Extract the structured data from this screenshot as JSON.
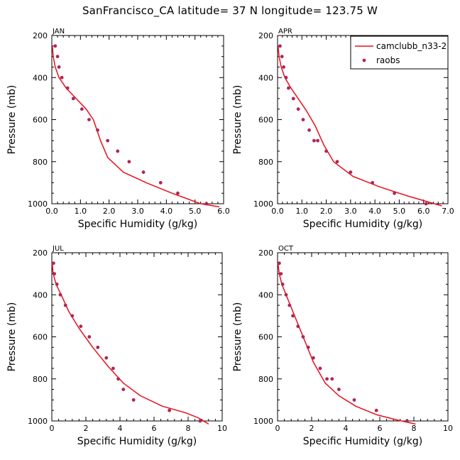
{
  "title": "SanFrancisco_CA  latitude= 37 N longitude= 123.75 W",
  "colors": {
    "model": "#e8101a",
    "obs": "#b0255a",
    "axis": "#000000"
  },
  "legend": {
    "model": "camclubb_n33-2",
    "obs": "raobs",
    "placement": "top-right of APR panel"
  },
  "chart_data": [
    {
      "type": "line",
      "panel": "JAN",
      "xlabel": "Specific Humidity (g/kg)",
      "ylabel": "Pressure (mb)",
      "xlim": [
        0,
        6.0
      ],
      "ylim": [
        1000,
        200
      ],
      "xticks": [
        "0.0",
        "1.0",
        "2.0",
        "3.0",
        "4.0",
        "5.0",
        "6.0"
      ],
      "yticks": [
        "200",
        "400",
        "600",
        "800",
        "1000"
      ],
      "series": [
        {
          "name": "camclubb_n33-2",
          "kind": "line",
          "x": [
            0.02,
            0.05,
            0.12,
            0.25,
            0.5,
            0.85,
            1.2,
            1.45,
            1.7,
            1.95,
            2.5,
            3.3,
            4.2,
            5.2,
            5.85
          ],
          "y": [
            250,
            300,
            350,
            400,
            450,
            500,
            550,
            600,
            700,
            780,
            850,
            900,
            950,
            1000,
            1015
          ]
        },
        {
          "name": "raobs",
          "kind": "scatter",
          "x": [
            0.12,
            0.2,
            0.25,
            0.35,
            0.55,
            0.75,
            1.05,
            1.3,
            1.6,
            1.95,
            2.3,
            2.7,
            3.2,
            3.8,
            4.4,
            5.4
          ],
          "y": [
            250,
            300,
            350,
            400,
            450,
            500,
            550,
            600,
            650,
            700,
            750,
            800,
            850,
            900,
            950,
            1000
          ]
        }
      ]
    },
    {
      "type": "line",
      "panel": "APR",
      "xlabel": "Specific Humidity (g/kg)",
      "ylabel": "Pressure (mb)",
      "xlim": [
        0,
        7.0
      ],
      "ylim": [
        1000,
        200
      ],
      "xticks": [
        "0.0",
        "1.0",
        "2.0",
        "3.0",
        "4.0",
        "5.0",
        "6.0",
        "7.0"
      ],
      "yticks": [
        "200",
        "400",
        "600",
        "800",
        "1000"
      ],
      "series": [
        {
          "name": "camclubb_n33-2",
          "kind": "line",
          "x": [
            0.02,
            0.06,
            0.15,
            0.3,
            0.55,
            0.85,
            1.2,
            1.55,
            1.9,
            2.3,
            3.1,
            4.2,
            5.4,
            6.75
          ],
          "y": [
            250,
            300,
            350,
            400,
            450,
            500,
            560,
            630,
            720,
            800,
            870,
            920,
            965,
            1010
          ]
        },
        {
          "name": "raobs",
          "kind": "scatter",
          "x": [
            0.1,
            0.18,
            0.25,
            0.35,
            0.45,
            0.65,
            0.85,
            1.05,
            1.3,
            1.5,
            1.65,
            2.0,
            2.45,
            3.0,
            3.9,
            4.8,
            6.1
          ],
          "y": [
            250,
            300,
            350,
            400,
            450,
            500,
            550,
            600,
            650,
            700,
            700,
            750,
            800,
            850,
            900,
            950,
            1000
          ]
        }
      ]
    },
    {
      "type": "line",
      "panel": "JUL",
      "xlabel": "Specific Humidity (g/kg)",
      "ylabel": "Pressure (mb)",
      "xlim": [
        0,
        10
      ],
      "ylim": [
        1000,
        200
      ],
      "xticks": [
        "0",
        "2",
        "4",
        "6",
        "8",
        "10"
      ],
      "yticks": [
        "200",
        "400",
        "600",
        "800",
        "1000"
      ],
      "series": [
        {
          "name": "camclubb_n33-2",
          "kind": "line",
          "x": [
            0.02,
            0.08,
            0.25,
            0.55,
            1.0,
            1.6,
            2.4,
            3.3,
            4.2,
            5.2,
            6.5,
            7.8,
            8.6,
            9.2
          ],
          "y": [
            250,
            300,
            350,
            400,
            480,
            560,
            650,
            740,
            820,
            880,
            930,
            960,
            985,
            1015
          ]
        },
        {
          "name": "raobs",
          "kind": "scatter",
          "x": [
            0.1,
            0.15,
            0.3,
            0.5,
            0.8,
            1.2,
            1.7,
            2.2,
            2.7,
            3.2,
            3.6,
            3.9,
            4.2,
            4.8,
            6.9,
            8.7
          ],
          "y": [
            250,
            300,
            350,
            400,
            450,
            500,
            550,
            600,
            650,
            700,
            750,
            800,
            850,
            900,
            950,
            1000
          ]
        }
      ]
    },
    {
      "type": "line",
      "panel": "OCT",
      "xlabel": "Specific Humidity (g/kg)",
      "ylabel": "Pressure (mb)",
      "xlim": [
        0,
        10
      ],
      "ylim": [
        1000,
        200
      ],
      "xticks": [
        "0",
        "2",
        "4",
        "6",
        "8",
        "10"
      ],
      "yticks": [
        "200",
        "400",
        "600",
        "800",
        "1000"
      ],
      "series": [
        {
          "name": "camclubb_n33-2",
          "kind": "line",
          "x": [
            0.02,
            0.1,
            0.25,
            0.5,
            0.8,
            1.2,
            1.6,
            2.1,
            2.8,
            3.6,
            4.6,
            5.8,
            7.0,
            8.1
          ],
          "y": [
            250,
            300,
            350,
            400,
            460,
            540,
            620,
            720,
            820,
            880,
            930,
            970,
            995,
            1015
          ]
        },
        {
          "name": "raobs",
          "kind": "scatter",
          "x": [
            0.1,
            0.2,
            0.3,
            0.5,
            0.7,
            0.9,
            1.2,
            1.5,
            1.8,
            2.1,
            2.5,
            2.9,
            3.2,
            3.6,
            4.5,
            5.8,
            7.6
          ],
          "y": [
            250,
            300,
            350,
            400,
            450,
            500,
            550,
            600,
            650,
            700,
            750,
            800,
            800,
            850,
            900,
            950,
            1000
          ]
        }
      ]
    }
  ]
}
